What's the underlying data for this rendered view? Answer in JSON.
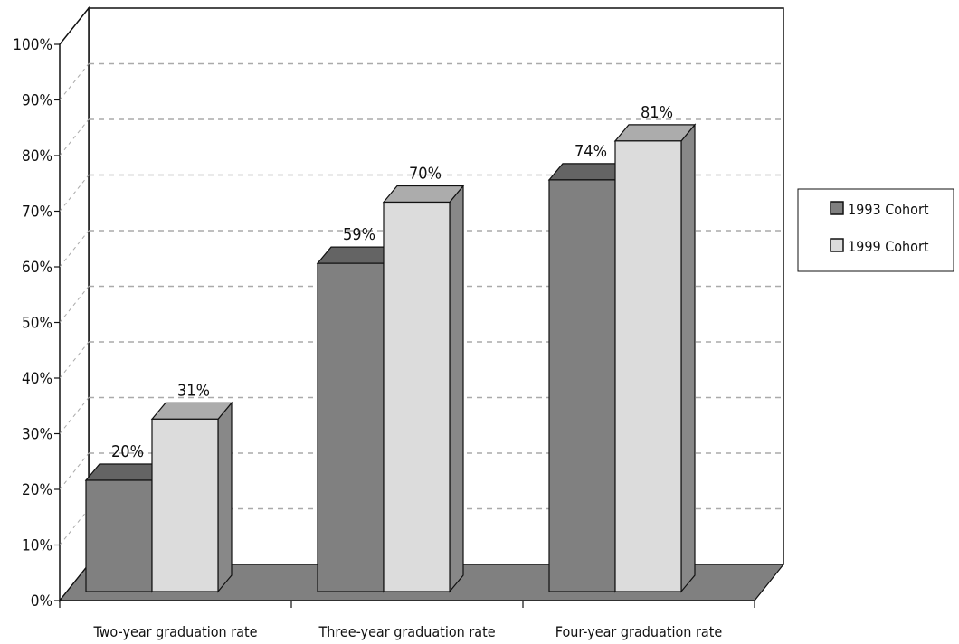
{
  "chart_data": {
    "type": "bar",
    "title": "",
    "xlabel": "",
    "ylabel": "",
    "categories": [
      "Two-year graduation rate",
      "Three-year graduation rate",
      "Four-year graduation rate"
    ],
    "series": [
      {
        "name": "1993 Cohort",
        "values": [
          20,
          59,
          74
        ],
        "labels": [
          "20%",
          "59%",
          "74%"
        ],
        "color": "#808080"
      },
      {
        "name": "1999 Cohort",
        "values": [
          31,
          70,
          81
        ],
        "labels": [
          "31%",
          "70%",
          "81%"
        ],
        "color": "#dcdcdc"
      }
    ],
    "ylim": [
      0,
      100
    ],
    "yticks": [
      "0%",
      "10%",
      "20%",
      "30%",
      "40%",
      "50%",
      "60%",
      "70%",
      "80%",
      "90%",
      "100%"
    ],
    "grid": true,
    "legend_position": "right",
    "style": "3d"
  }
}
